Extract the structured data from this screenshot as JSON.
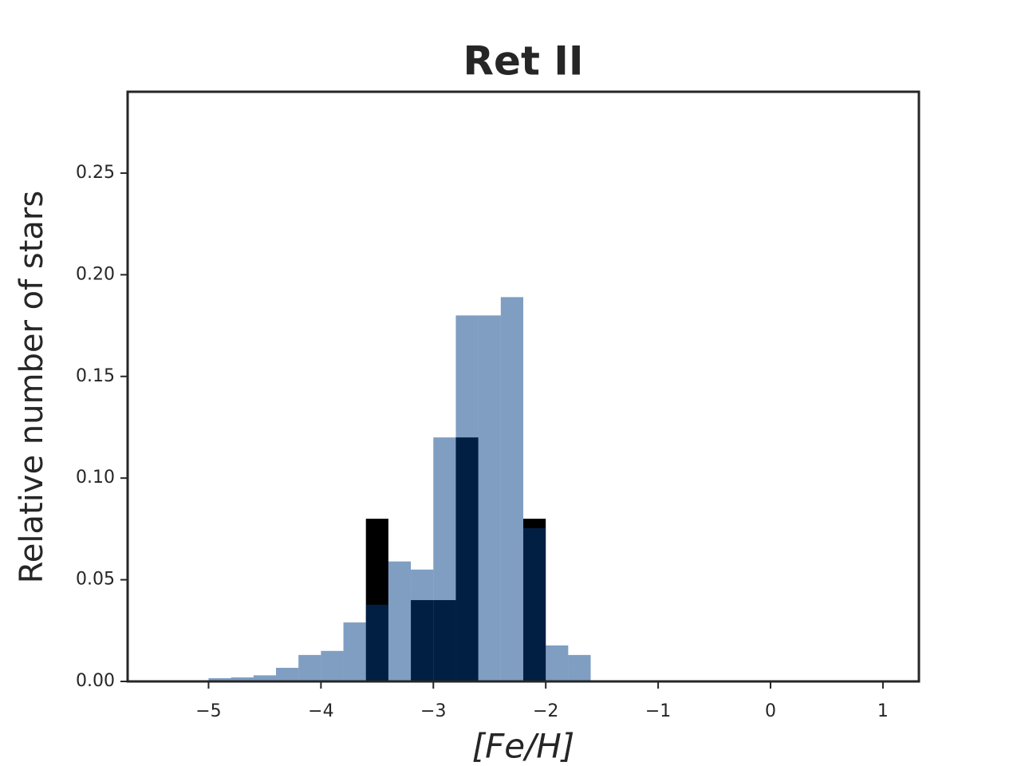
{
  "chart_data": {
    "type": "histogram",
    "title": "Ret II",
    "xlabel": "[Fe/H]",
    "ylabel": "Relative number of stars",
    "bins": [
      -5.0,
      -4.8,
      -4.6,
      -4.4,
      -4.2,
      -4.0,
      -3.8,
      -3.6,
      -3.4,
      -3.2,
      -3.0,
      -2.8,
      -2.6,
      -2.4,
      -2.2,
      -2.0,
      -1.8,
      -1.6
    ],
    "series": [
      {
        "color": "#000000",
        "alpha": 1,
        "values": [
          0,
          0,
          0,
          0,
          0,
          0,
          0,
          0.08,
          0,
          0.04,
          0.04,
          0.12,
          0,
          0,
          0.08,
          0,
          0
        ]
      },
      {
        "color": "#003d86",
        "alpha": 0.5,
        "values": [
          0.0016,
          0.002,
          0.003,
          0.0067,
          0.013,
          0.015,
          0.029,
          0.0377,
          0.059,
          0.055,
          0.12,
          0.18,
          0.18,
          0.189,
          0.0754,
          0.0177,
          0.013
        ]
      }
    ],
    "xlim": [
      -5.72,
      1.32
    ],
    "ylim": [
      0,
      0.29
    ],
    "xticks": [
      {
        "value": -5,
        "label": "−5"
      },
      {
        "value": -4,
        "label": "−4"
      },
      {
        "value": -3,
        "label": "−3"
      },
      {
        "value": -2,
        "label": "−2"
      },
      {
        "value": -1,
        "label": "−1"
      },
      0,
      1
    ],
    "yticks": [
      {
        "value": 0,
        "label": "0.00"
      },
      0.05,
      {
        "value": 0.1,
        "label": "0.10"
      },
      0.15,
      {
        "value": 0.2,
        "label": "0.20"
      },
      0.25
    ],
    "grid": false
  }
}
